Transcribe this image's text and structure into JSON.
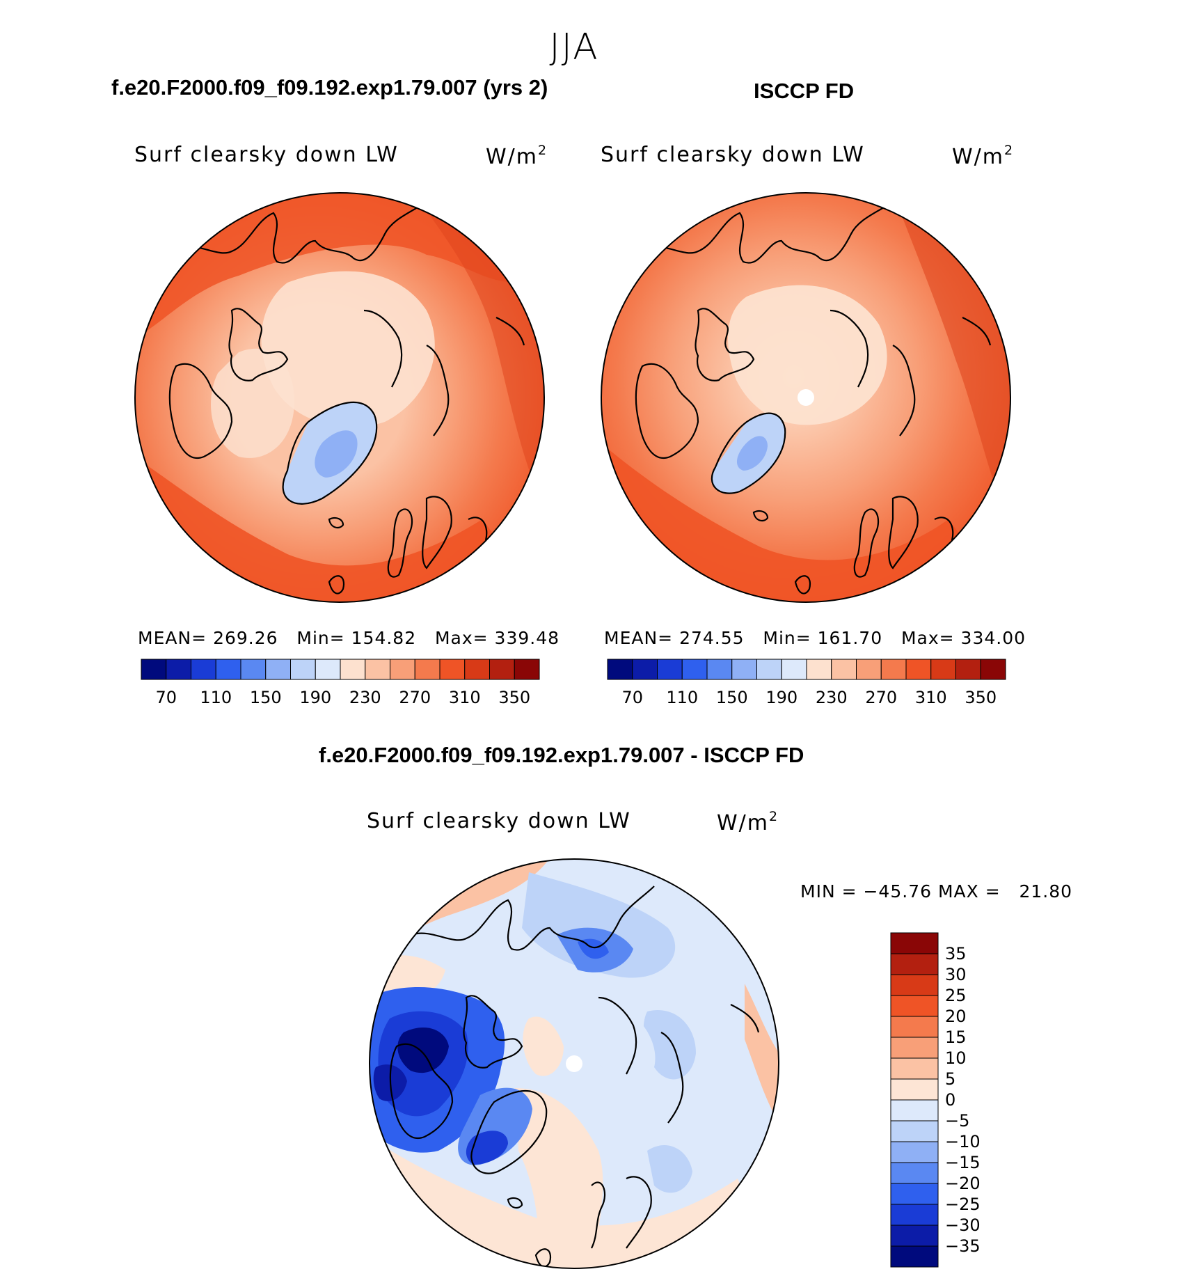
{
  "figure": {
    "season": "JJA",
    "variable": "Surf clearsky down LW",
    "units": "W/m",
    "units_exp": "2"
  },
  "panels": [
    {
      "title": "f.e20.F2000.f09_f09.192.exp1.79.007 (yrs 2)",
      "mean": "MEAN= 269.26",
      "min": "Min= 154.82",
      "max": "Max= 339.48"
    },
    {
      "title": "ISCCP FD",
      "mean": "MEAN= 274.55",
      "min": "Min= 161.70",
      "max": "Max= 334.00"
    }
  ],
  "diff_panel": {
    "title": "f.e20.F2000.f09_f09.192.exp1.79.007 - ISCCP FD",
    "minmax": "MIN = −45.76 MAX =   21.80"
  },
  "colorbar_abs": {
    "tick_labels": [
      "70",
      "110",
      "150",
      "190",
      "230",
      "270",
      "310",
      "350"
    ],
    "colors": [
      "#000a7d",
      "#0c1ca8",
      "#1a3cd6",
      "#2f60ee",
      "#5a88f2",
      "#8fb0f5",
      "#bdd3f8",
      "#dde9fb",
      "#fde1cf",
      "#fbc2a4",
      "#f89f78",
      "#f47a4d",
      "#ef5426",
      "#d83a17",
      "#b32010",
      "#8a0606"
    ]
  },
  "colorbar_diff": {
    "tick_labels": [
      "35",
      "30",
      "25",
      "20",
      "15",
      "10",
      "5",
      "0",
      "−5",
      "−10",
      "−15",
      "−20",
      "−25",
      "−30",
      "−35"
    ],
    "colors": [
      "#8a0606",
      "#b32010",
      "#d83a17",
      "#ef5426",
      "#f47a4d",
      "#f89f78",
      "#fbc2a4",
      "#fde5d5",
      "#dde9fb",
      "#bdd3f8",
      "#8fb0f5",
      "#5a88f2",
      "#2f60ee",
      "#1a3cd6",
      "#0c1ca8",
      "#000a7d"
    ]
  }
}
